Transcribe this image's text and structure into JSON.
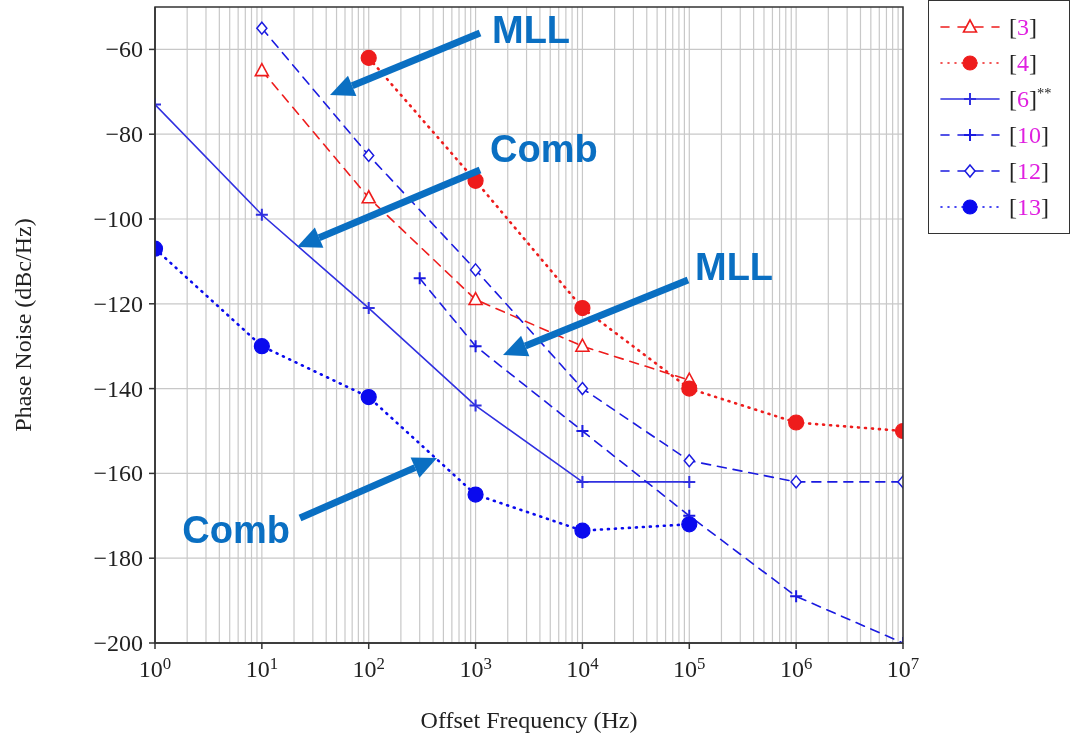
{
  "chart_data": {
    "type": "line",
    "xlabel": "Offset Frequency (Hz)",
    "ylabel": "Phase Noise (dBc/Hz)",
    "log": "x",
    "xlim": [
      1,
      10000000
    ],
    "ylim": [
      -200,
      -50
    ],
    "xticks": [
      {
        "value": 1,
        "label": "10$^{0}$"
      },
      {
        "value": 10,
        "label": "10$^{1}$"
      },
      {
        "value": 100,
        "label": "10$^{2}$"
      },
      {
        "value": 1000,
        "label": "10$^{3}$"
      },
      {
        "value": 10000,
        "label": "10$^{4}$"
      },
      {
        "value": 100000,
        "label": "10$^{5}$"
      },
      {
        "value": 1000000,
        "label": "10$^{6}$"
      },
      {
        "value": 10000000,
        "label": "10$^{7}$"
      }
    ],
    "yticks": [
      {
        "value": -200,
        "label": "−200"
      },
      {
        "value": -180,
        "label": "−180"
      },
      {
        "value": -160,
        "label": "−160"
      },
      {
        "value": -140,
        "label": "−140"
      },
      {
        "value": -120,
        "label": "−120"
      },
      {
        "value": -100,
        "label": "−100"
      },
      {
        "value": -80,
        "label": "−80"
      },
      {
        "value": -60,
        "label": "−60"
      }
    ],
    "grid": true,
    "legend": "top right",
    "series": [
      {
        "name": "[3]",
        "color": "#ee1c1c",
        "marker": "triangle",
        "line_style": "dashed",
        "x": [
          10,
          100,
          1000,
          10000,
          100000
        ],
        "values": [
          -65,
          -95,
          -119,
          -130,
          -138
        ]
      },
      {
        "name": "[4]",
        "color": "#ee1c1c",
        "marker": "circle",
        "line_style": "dotted",
        "x": [
          100,
          1000,
          10000,
          100000,
          1000000,
          10000000
        ],
        "values": [
          -62,
          -91,
          -121,
          -140,
          -148,
          -150
        ]
      },
      {
        "name": "[6]$^{**}$",
        "color": "#3030e0",
        "marker": "cross",
        "line_style": "solid",
        "x": [
          1,
          10,
          100,
          1000,
          10000,
          100000
        ],
        "values": [
          -73,
          -99,
          -121,
          -144,
          -162,
          -162
        ]
      },
      {
        "name": "[10]",
        "color": "#1a1ae0",
        "marker": "cross",
        "line_style": "dashed",
        "x": [
          300,
          1000,
          10000,
          100000,
          1000000,
          10000000
        ],
        "values": [
          -114,
          -130,
          -150,
          -170,
          -189,
          -200
        ]
      },
      {
        "name": "[12]",
        "color": "#1a1ae0",
        "marker": "diamond",
        "line_style": "dashed",
        "x": [
          10,
          100,
          1000,
          10000,
          100000,
          1000000,
          10000000
        ],
        "values": [
          -55,
          -85,
          -112,
          -140,
          -157,
          -162,
          -162
        ]
      },
      {
        "name": "[13]",
        "color": "#0a0aee",
        "marker": "circle",
        "line_style": "dotted",
        "x": [
          1,
          10,
          100,
          1000,
          10000,
          100000
        ],
        "values": [
          -107,
          -130,
          -142,
          -165,
          -173.5,
          -172
        ]
      }
    ],
    "annotations": [
      "MLL",
      "Comb",
      "MLL",
      "Comb"
    ]
  }
}
